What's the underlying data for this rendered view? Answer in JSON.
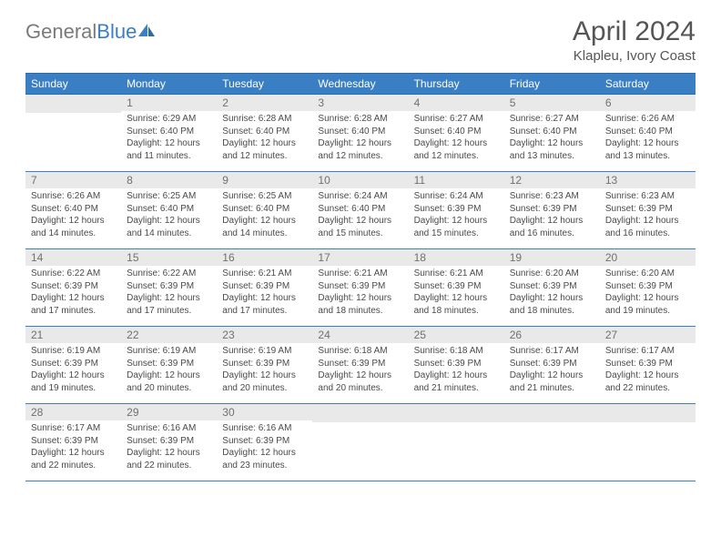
{
  "brand": {
    "part1": "General",
    "part2": "Blue"
  },
  "title": "April 2024",
  "location": "Klapleu, Ivory Coast",
  "colors": {
    "header_bg": "#3a7fc4",
    "header_text": "#ffffff",
    "daynum_bg": "#e9e9e9",
    "daynum_text": "#707070",
    "body_text": "#4a4a4a",
    "rule": "#3a7fc4"
  },
  "weekday_labels": [
    "Sunday",
    "Monday",
    "Tuesday",
    "Wednesday",
    "Thursday",
    "Friday",
    "Saturday"
  ],
  "start_weekday": 1,
  "days": [
    {
      "n": 1,
      "sunrise": "6:29 AM",
      "sunset": "6:40 PM",
      "daylight": "12 hours and 11 minutes."
    },
    {
      "n": 2,
      "sunrise": "6:28 AM",
      "sunset": "6:40 PM",
      "daylight": "12 hours and 12 minutes."
    },
    {
      "n": 3,
      "sunrise": "6:28 AM",
      "sunset": "6:40 PM",
      "daylight": "12 hours and 12 minutes."
    },
    {
      "n": 4,
      "sunrise": "6:27 AM",
      "sunset": "6:40 PM",
      "daylight": "12 hours and 12 minutes."
    },
    {
      "n": 5,
      "sunrise": "6:27 AM",
      "sunset": "6:40 PM",
      "daylight": "12 hours and 13 minutes."
    },
    {
      "n": 6,
      "sunrise": "6:26 AM",
      "sunset": "6:40 PM",
      "daylight": "12 hours and 13 minutes."
    },
    {
      "n": 7,
      "sunrise": "6:26 AM",
      "sunset": "6:40 PM",
      "daylight": "12 hours and 14 minutes."
    },
    {
      "n": 8,
      "sunrise": "6:25 AM",
      "sunset": "6:40 PM",
      "daylight": "12 hours and 14 minutes."
    },
    {
      "n": 9,
      "sunrise": "6:25 AM",
      "sunset": "6:40 PM",
      "daylight": "12 hours and 14 minutes."
    },
    {
      "n": 10,
      "sunrise": "6:24 AM",
      "sunset": "6:40 PM",
      "daylight": "12 hours and 15 minutes."
    },
    {
      "n": 11,
      "sunrise": "6:24 AM",
      "sunset": "6:39 PM",
      "daylight": "12 hours and 15 minutes."
    },
    {
      "n": 12,
      "sunrise": "6:23 AM",
      "sunset": "6:39 PM",
      "daylight": "12 hours and 16 minutes."
    },
    {
      "n": 13,
      "sunrise": "6:23 AM",
      "sunset": "6:39 PM",
      "daylight": "12 hours and 16 minutes."
    },
    {
      "n": 14,
      "sunrise": "6:22 AM",
      "sunset": "6:39 PM",
      "daylight": "12 hours and 17 minutes."
    },
    {
      "n": 15,
      "sunrise": "6:22 AM",
      "sunset": "6:39 PM",
      "daylight": "12 hours and 17 minutes."
    },
    {
      "n": 16,
      "sunrise": "6:21 AM",
      "sunset": "6:39 PM",
      "daylight": "12 hours and 17 minutes."
    },
    {
      "n": 17,
      "sunrise": "6:21 AM",
      "sunset": "6:39 PM",
      "daylight": "12 hours and 18 minutes."
    },
    {
      "n": 18,
      "sunrise": "6:21 AM",
      "sunset": "6:39 PM",
      "daylight": "12 hours and 18 minutes."
    },
    {
      "n": 19,
      "sunrise": "6:20 AM",
      "sunset": "6:39 PM",
      "daylight": "12 hours and 18 minutes."
    },
    {
      "n": 20,
      "sunrise": "6:20 AM",
      "sunset": "6:39 PM",
      "daylight": "12 hours and 19 minutes."
    },
    {
      "n": 21,
      "sunrise": "6:19 AM",
      "sunset": "6:39 PM",
      "daylight": "12 hours and 19 minutes."
    },
    {
      "n": 22,
      "sunrise": "6:19 AM",
      "sunset": "6:39 PM",
      "daylight": "12 hours and 20 minutes."
    },
    {
      "n": 23,
      "sunrise": "6:19 AM",
      "sunset": "6:39 PM",
      "daylight": "12 hours and 20 minutes."
    },
    {
      "n": 24,
      "sunrise": "6:18 AM",
      "sunset": "6:39 PM",
      "daylight": "12 hours and 20 minutes."
    },
    {
      "n": 25,
      "sunrise": "6:18 AM",
      "sunset": "6:39 PM",
      "daylight": "12 hours and 21 minutes."
    },
    {
      "n": 26,
      "sunrise": "6:17 AM",
      "sunset": "6:39 PM",
      "daylight": "12 hours and 21 minutes."
    },
    {
      "n": 27,
      "sunrise": "6:17 AM",
      "sunset": "6:39 PM",
      "daylight": "12 hours and 22 minutes."
    },
    {
      "n": 28,
      "sunrise": "6:17 AM",
      "sunset": "6:39 PM",
      "daylight": "12 hours and 22 minutes."
    },
    {
      "n": 29,
      "sunrise": "6:16 AM",
      "sunset": "6:39 PM",
      "daylight": "12 hours and 22 minutes."
    },
    {
      "n": 30,
      "sunrise": "6:16 AM",
      "sunset": "6:39 PM",
      "daylight": "12 hours and 23 minutes."
    }
  ],
  "labels": {
    "sunrise": "Sunrise:",
    "sunset": "Sunset:",
    "daylight": "Daylight:"
  }
}
